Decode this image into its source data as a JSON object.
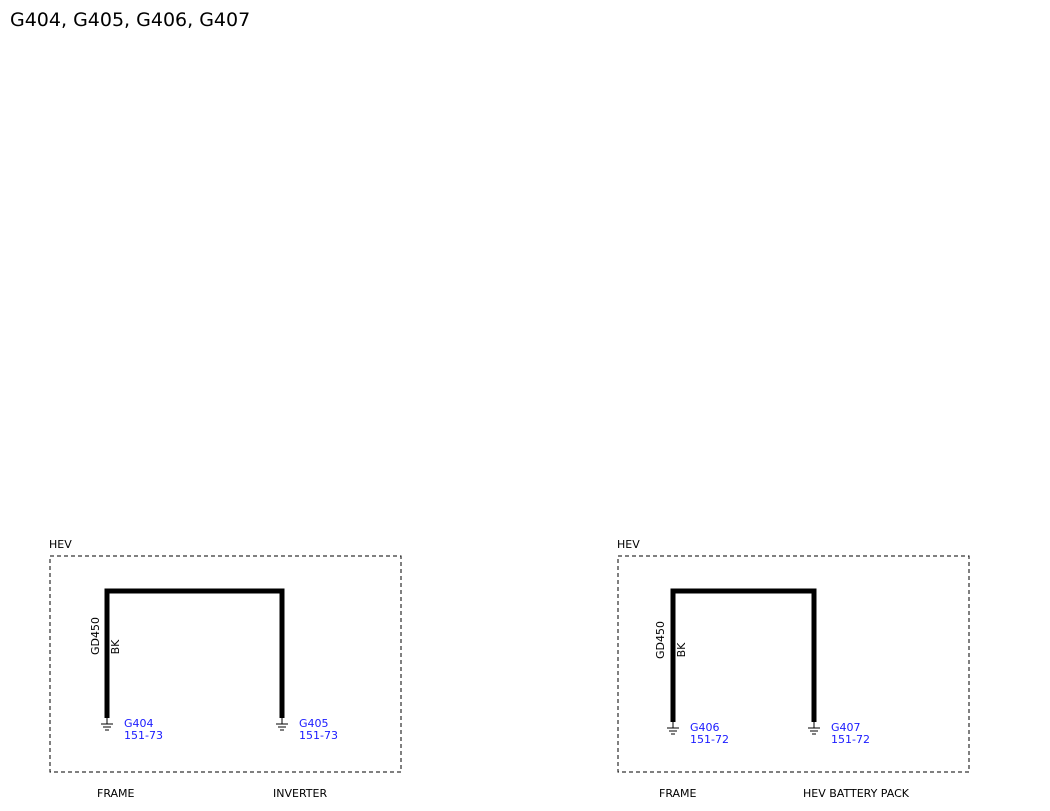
{
  "title": "G404, G405, G406, G407",
  "panels": [
    {
      "label": "HEV",
      "wire": {
        "circuit": "GD450",
        "color": "BK"
      },
      "grounds": [
        {
          "name": "G404",
          "ref": "151-73",
          "location": "FRAME"
        },
        {
          "name": "G405",
          "ref": "151-73",
          "location": "INVERTER"
        }
      ]
    },
    {
      "label": "HEV",
      "wire": {
        "circuit": "GD450",
        "color": "BK"
      },
      "grounds": [
        {
          "name": "G406",
          "ref": "151-72",
          "location": "FRAME"
        },
        {
          "name": "G407",
          "ref": "151-72",
          "location": "HEV BATTERY PACK"
        }
      ]
    }
  ]
}
